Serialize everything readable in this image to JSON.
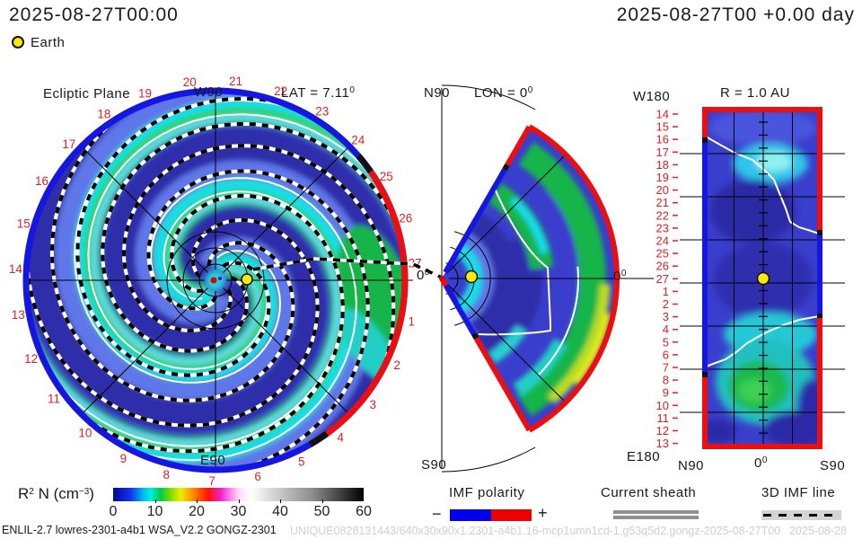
{
  "header": {
    "ts_left": "2025-08-27T00:00",
    "ts_right": "2025-08-27T00 +0.00 day",
    "earth": "Earth"
  },
  "panels": {
    "ecliptic": {
      "title": "Ecliptic Plane",
      "top": "W90",
      "bottom": "E90",
      "lat_prefix": "LAT = 7.11",
      "deg": "0",
      "zero": "0",
      "day_labels": [
        "1",
        "2",
        "3",
        "4",
        "5",
        "6",
        "7",
        "8",
        "9",
        "10",
        "11",
        "12",
        "13",
        "14",
        "15",
        "16",
        "17",
        "18",
        "19",
        "20",
        "21",
        "22",
        "23",
        "24",
        "25",
        "26",
        "27"
      ]
    },
    "meridional": {
      "n": "N90",
      "lon_prefix": "LON = 0",
      "deg": "0",
      "s": "S90",
      "zero": "0"
    },
    "radial": {
      "title": "R = 1.0 AU",
      "top_left": "W180",
      "bottom_left": "E180",
      "x_n": "N90",
      "x_zero": "0",
      "deg": "0",
      "x_s": "S90",
      "day_labels": [
        "14",
        "15",
        "16",
        "17",
        "18",
        "19",
        "20",
        "21",
        "22",
        "23",
        "24",
        "25",
        "26",
        "27",
        "1",
        "2",
        "3",
        "4",
        "5",
        "6",
        "7",
        "8",
        "9",
        "10",
        "11",
        "12",
        "13"
      ]
    }
  },
  "colorbar": {
    "label_r": "R",
    "sup2": "2",
    "mid": " N (cm",
    "supm3": "−3",
    "close": ")",
    "ticks": [
      "0",
      "10",
      "20",
      "30",
      "40",
      "50",
      "60"
    ],
    "stops": [
      [
        "#000898",
        0
      ],
      [
        "#1133EE",
        7
      ],
      [
        "#00BBEE",
        12
      ],
      [
        "#00EEDD",
        15
      ],
      [
        "#00CC44",
        19
      ],
      [
        "#7FDD00",
        23
      ],
      [
        "#EEEE00",
        27
      ],
      [
        "#FF8800",
        32
      ],
      [
        "#FF1100",
        38
      ],
      [
        "#EE22CC",
        43
      ],
      [
        "#FF88EE",
        47
      ],
      [
        "#FFD8F8",
        50
      ],
      [
        "#FFFFFF",
        55
      ],
      [
        "#CFCFCF",
        65
      ],
      [
        "#8A8A8A",
        80
      ],
      [
        "#000000",
        100
      ]
    ]
  },
  "legend": {
    "imf": "IMF polarity",
    "minus": "−",
    "plus": "+",
    "sheath": "Current sheath",
    "line3d": "3D IMF line"
  },
  "footer": {
    "model": "ENLIL-2.7 lowres-2301-a4b1 WSA_V2.2 GONGZ-2301",
    "watermark": "UNIQUE0828131443/640x30x90x1.2301-a4b1.16-mcp1umn1cd-1.g53q5d2.gongz-2025-08-27T00",
    "watermark2": "2025-08-28"
  },
  "colors": {
    "base_blue": "#3A3ECC",
    "dark_blue": "#2D2DAA",
    "light_blue": "#5F77E8",
    "cyan": "#15DEE9",
    "green": "#14B54A",
    "bright_green": "#2FD14F",
    "yellow_green": "#B9DC25",
    "yellow": "#EFF00F",
    "rim_blue": "#1616E2",
    "rim_red": "#ED0F0F",
    "label_red": "#DD2222",
    "earth_yellow": "#FFE70A",
    "white_line": "#FFFFFF",
    "sheath_gray": "#909090"
  },
  "chart_data": {
    "type": "heatmap",
    "title": "ENLIL solar wind density R²N (cm⁻³), 2025-08-27T00:00 (+0.00 day)",
    "quantity": "R2 N (cm-3)",
    "colorbar_range": [
      0,
      60
    ],
    "colorbar_ticks": [
      0,
      10,
      20,
      30,
      40,
      50,
      60
    ],
    "panels": [
      {
        "name": "ecliptic-plane",
        "title": "Ecliptic Plane",
        "pole_axis_labels": [
          "W90",
          "E90"
        ],
        "lat_deg": 7.11,
        "earth_longitude_label": "0",
        "day_of_month_ring_labels": [
          1,
          2,
          3,
          4,
          5,
          6,
          7,
          8,
          9,
          10,
          11,
          12,
          13,
          14,
          15,
          16,
          17,
          18,
          19,
          20,
          21,
          22,
          23,
          24,
          25,
          26,
          27
        ],
        "rim_polarity": "red (+) arc from ~+37 deg to ~-55 deg around Earth direction, blue (-) elsewhere",
        "features": [
          "Parker spiral density arms",
          "white current sheet spirals",
          "dashed 3D IMF lines",
          "Earth at 0 deg"
        ]
      },
      {
        "name": "meridional-plane",
        "title": "LON = 0",
        "axis_labels": [
          "N90",
          "S90"
        ],
        "wedge_extent_deg": 120,
        "rim_polarity": "blue near apex on both wedge edges, red on outer arc",
        "features": [
          "white current sheet",
          "Earth on equator near apex"
        ]
      },
      {
        "name": "constant-radius-map",
        "title": "R = 1.0 AU",
        "y_axis": [
          "W180",
          "E180"
        ],
        "y_day_labels": [
          14,
          15,
          16,
          17,
          18,
          19,
          20,
          21,
          22,
          23,
          24,
          25,
          26,
          27,
          1,
          2,
          3,
          4,
          5,
          6,
          7,
          8,
          9,
          10,
          11,
          12,
          13
        ],
        "x_axis": [
          "N90",
          "0",
          "S90"
        ],
        "earth_at_day": 27,
        "border_polarity": "red top/bottom; left red-blue-red; right red-blue-red",
        "features": [
          "white current sheet crossing from (day16,N) to (day23,S) and (day3,S) to (day7,N)"
        ]
      }
    ],
    "legend_entries": [
      "Earth",
      "IMF polarity (- blue / + red)",
      "Current sheath",
      "3D IMF line"
    ],
    "model_run": "ENLIL-2.7 lowres-2301-a4b1 WSA_V2.2 GONGZ-2301"
  }
}
